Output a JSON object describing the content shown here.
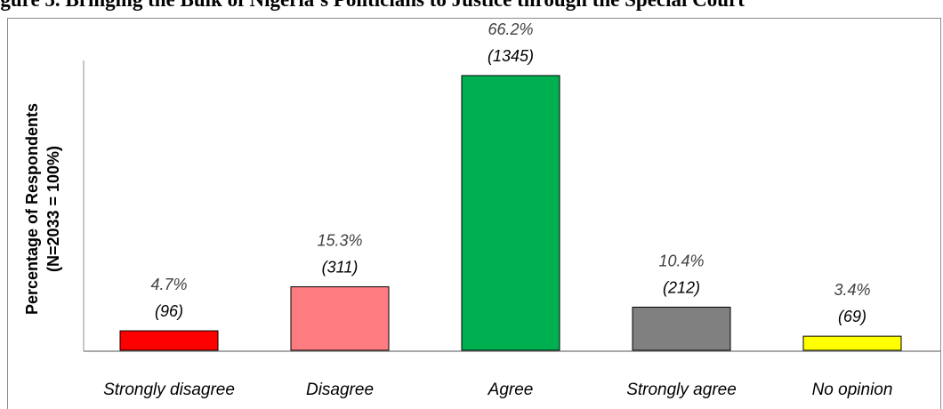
{
  "title": "igure 5. Bringing the Bulk of Nigeria’s Politicians to Justice through the Special Court",
  "chart_data": {
    "type": "bar",
    "title": "igure 5. Bringing the Bulk of Nigeria’s Politicians to Justice through the Special Court",
    "ylabel_lines": [
      "Percentage  of Respondents",
      "(N=2033 = 100%)"
    ],
    "xlabel": "",
    "categories": [
      "Strongly disagree",
      "Disagree",
      "Agree",
      "Strongly agree",
      "No opinion"
    ],
    "values": [
      4.7,
      15.3,
      66.2,
      10.4,
      3.4
    ],
    "percent_labels": [
      "4.7%",
      "15.3%",
      "66.2%",
      "10.4%",
      "3.4%"
    ],
    "count_labels": [
      "(96)",
      "(311)",
      "(1345)",
      "(212)",
      "(69)"
    ],
    "colors": [
      "#ff0000",
      "#ff7c80",
      "#00b050",
      "#808080",
      "#ffff00"
    ],
    "ylim": [
      0,
      66.2
    ],
    "grid": false,
    "legend": "none"
  }
}
